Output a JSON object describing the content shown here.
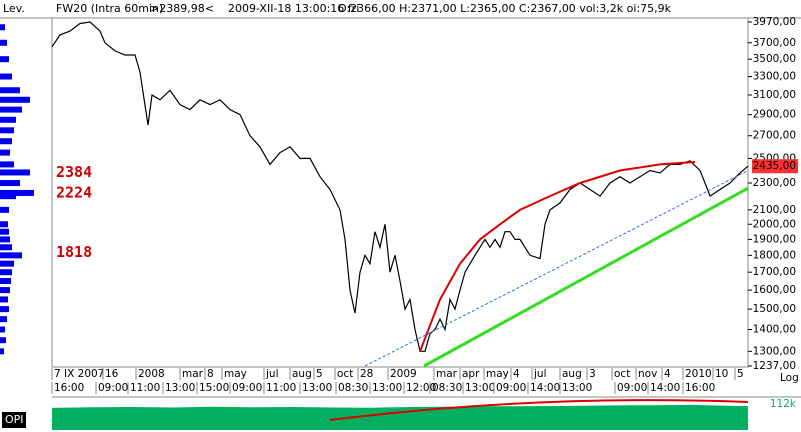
{
  "header": {
    "instrument": "FW20 (Intra 60min)",
    "last": ">2389,98<",
    "timestamp": "2009-XII-18 13:00:16 fri",
    "ohlc": "O:2366,00 H:2371,00 L:2365,00 C:2367,00 vol:3,2k oi:75,9k",
    "left_label": "Lev."
  },
  "chart_data": [
    {
      "type": "line",
      "log": true,
      "scale_label": "Log",
      "color": "#000000",
      "xlim": [
        0,
        696
      ],
      "ylim": [
        1237,
        3970
      ],
      "x": [
        0,
        8,
        18,
        28,
        38,
        48,
        53,
        63,
        73,
        83,
        88,
        96,
        100,
        108,
        118,
        128,
        138,
        148,
        158,
        168,
        178,
        188,
        198,
        208,
        218,
        228,
        238,
        248,
        258,
        268,
        278,
        288,
        293,
        298,
        303,
        308,
        313,
        318,
        323,
        328,
        333,
        338,
        343,
        348,
        353,
        358,
        363,
        368,
        373,
        378,
        383,
        388,
        393,
        398,
        403,
        408,
        413,
        418,
        423,
        428,
        433,
        438,
        443,
        448,
        453,
        458,
        463,
        468,
        478,
        488,
        493,
        498,
        508,
        518,
        528,
        538,
        548,
        558,
        568,
        578,
        588,
        598,
        608,
        618,
        628,
        638,
        648,
        653,
        658,
        668,
        678,
        688,
        696
      ],
      "series": [
        {
          "name": "FW20",
          "values": [
            3650,
            3800,
            3850,
            3950,
            3970,
            3850,
            3700,
            3600,
            3550,
            3550,
            3350,
            2800,
            3100,
            3050,
            3150,
            3000,
            2950,
            3050,
            3000,
            3050,
            2950,
            2900,
            2700,
            2600,
            2450,
            2550,
            2600,
            2500,
            2500,
            2350,
            2250,
            2100,
            1900,
            1600,
            1480,
            1700,
            1800,
            1750,
            1950,
            1850,
            2000,
            1700,
            1800,
            1650,
            1500,
            1550,
            1400,
            1300,
            1300,
            1380,
            1400,
            1450,
            1400,
            1550,
            1500,
            1600,
            1700,
            1750,
            1800,
            1850,
            1900,
            1850,
            1900,
            1850,
            1950,
            1950,
            1900,
            1900,
            1800,
            1780,
            2000,
            2100,
            2150,
            2250,
            2300,
            2250,
            2200,
            2300,
            2350,
            2300,
            2350,
            2400,
            2380,
            2450,
            2450,
            2480,
            2400,
            2300,
            2200,
            2250,
            2300,
            2380,
            2435
          ]
        }
      ],
      "last_value": {
        "value": 2435,
        "label": "2435,00"
      },
      "yticks": [
        {
          "value": 3970,
          "label": "3970,00"
        },
        {
          "value": 3700,
          "label": "3700,00"
        },
        {
          "value": 3500,
          "label": "3500,00"
        },
        {
          "value": 3300,
          "label": "3300,00"
        },
        {
          "value": 3100,
          "label": "3100,00"
        },
        {
          "value": 2900,
          "label": "2900,00"
        },
        {
          "value": 2700,
          "label": "2700,00"
        },
        {
          "value": 2500,
          "label": "2500,00"
        },
        {
          "value": 2300,
          "label": "2300,00"
        },
        {
          "value": 2100,
          "label": "2100,00"
        },
        {
          "value": 2000,
          "label": "2000,00"
        },
        {
          "value": 1900,
          "label": "1900,00"
        },
        {
          "value": 1800,
          "label": "1800,00"
        },
        {
          "value": 1700,
          "label": "1700,00"
        },
        {
          "value": 1600,
          "label": "1600,00"
        },
        {
          "value": 1500,
          "label": "1500,00"
        },
        {
          "value": 1400,
          "label": "1400,00"
        },
        {
          "value": 1300,
          "label": "1300,00"
        },
        {
          "value": 1237,
          "label": "1237,00"
        }
      ],
      "xticks": [
        {
          "value": 0,
          "label": "7 IX 2007"
        },
        {
          "value": 51,
          "label": "16"
        },
        {
          "value": 84,
          "label": "2008"
        },
        {
          "value": 128,
          "label": "mar"
        },
        {
          "value": 153,
          "label": "8"
        },
        {
          "value": 170,
          "label": "may"
        },
        {
          "value": 212,
          "label": "jul"
        },
        {
          "value": 238,
          "label": "aug"
        },
        {
          "value": 262,
          "label": "5"
        },
        {
          "value": 283,
          "label": "oct"
        },
        {
          "value": 306,
          "label": "28"
        },
        {
          "value": 336,
          "label": "2009"
        },
        {
          "value": 382,
          "label": "mar"
        },
        {
          "value": 408,
          "label": "apr"
        },
        {
          "value": 432,
          "label": "may"
        },
        {
          "value": 459,
          "label": "4"
        },
        {
          "value": 480,
          "label": "jul"
        },
        {
          "value": 508,
          "label": "aug"
        },
        {
          "value": 535,
          "label": "3"
        },
        {
          "value": 560,
          "label": "oct"
        },
        {
          "value": 584,
          "label": "nov"
        },
        {
          "value": 610,
          "label": "4"
        },
        {
          "value": 631,
          "label": "2010"
        },
        {
          "value": 661,
          "label": "10"
        },
        {
          "value": 683,
          "label": "5"
        }
      ],
      "xticks2": [
        {
          "value": 0,
          "label": "16:00"
        },
        {
          "value": 44,
          "label": "09:00"
        },
        {
          "value": 76,
          "label": "11:00"
        },
        {
          "value": 111,
          "label": "13:00"
        },
        {
          "value": 145,
          "label": "15:00"
        },
        {
          "value": 178,
          "label": "09:00"
        },
        {
          "value": 212,
          "label": "11:00"
        },
        {
          "value": 248,
          "label": "13:00"
        },
        {
          "value": 284,
          "label": "08:30"
        },
        {
          "value": 318,
          "label": "13:00"
        },
        {
          "value": 352,
          "label": "12:00"
        },
        {
          "value": 378,
          "label": "08:30"
        },
        {
          "value": 411,
          "label": "13:00"
        },
        {
          "value": 442,
          "label": "09:00"
        },
        {
          "value": 476,
          "label": "14:00"
        },
        {
          "value": 508,
          "label": "13:00"
        },
        {
          "value": 563,
          "label": "09:00"
        },
        {
          "value": 596,
          "label": "14:00"
        },
        {
          "value": 631,
          "label": "16:00"
        }
      ],
      "trendlines": [
        {
          "color": "#dd0000",
          "dash": false,
          "x": [
            368,
            388,
            408,
            428,
            448,
            468,
            498,
            528,
            568,
            608,
            643
          ],
          "y": [
            1300,
            1550,
            1750,
            1900,
            2000,
            2100,
            2200,
            2300,
            2400,
            2450,
            2470
          ]
        },
        {
          "color": "#33dd22",
          "dash": false,
          "x": [
            372,
            696
          ],
          "y": [
            1237,
            2260
          ]
        },
        {
          "color": "#2a6fd6",
          "dash": true,
          "x": [
            313,
            696
          ],
          "y": [
            1237,
            2400
          ]
        }
      ],
      "profile": {
        "color": "#0000ee",
        "level_color": "#cc0000",
        "xlim": [
          0,
          50
        ],
        "prices": [
          1300,
          1350,
          1400,
          1450,
          1500,
          1550,
          1600,
          1650,
          1700,
          1750,
          1800,
          1850,
          1900,
          1950,
          2000,
          2100,
          2200,
          2224,
          2300,
          2384,
          2450,
          2550,
          2650,
          2750,
          2850,
          2950,
          3050,
          3150,
          3300,
          3500,
          3700,
          3900
        ],
        "values": [
          4,
          6,
          5,
          7,
          9,
          8,
          10,
          11,
          12,
          14,
          22,
          12,
          10,
          9,
          8,
          9,
          16,
          34,
          20,
          30,
          14,
          10,
          12,
          14,
          16,
          22,
          30,
          20,
          12,
          9,
          7,
          5
        ],
        "levels": [
          2384,
          2224,
          1818
        ]
      }
    },
    {
      "type": "area",
      "name": "OPI",
      "color": "#00b060",
      "xlim": [
        0,
        696
      ],
      "ylim": [
        0,
        112000
      ],
      "x": [
        0,
        40,
        80,
        120,
        160,
        200,
        240,
        280,
        320,
        360,
        400,
        440,
        480,
        520,
        560,
        600,
        640,
        680,
        696
      ],
      "values": [
        95000,
        98000,
        99000,
        97000,
        100000,
        98000,
        99000,
        97000,
        96000,
        99000,
        101000,
        102000,
        103000,
        104000,
        106000,
        107000,
        108000,
        104000,
        103000
      ],
      "yticks": [
        {
          "value": 112000,
          "label": "112k"
        }
      ]
    }
  ]
}
